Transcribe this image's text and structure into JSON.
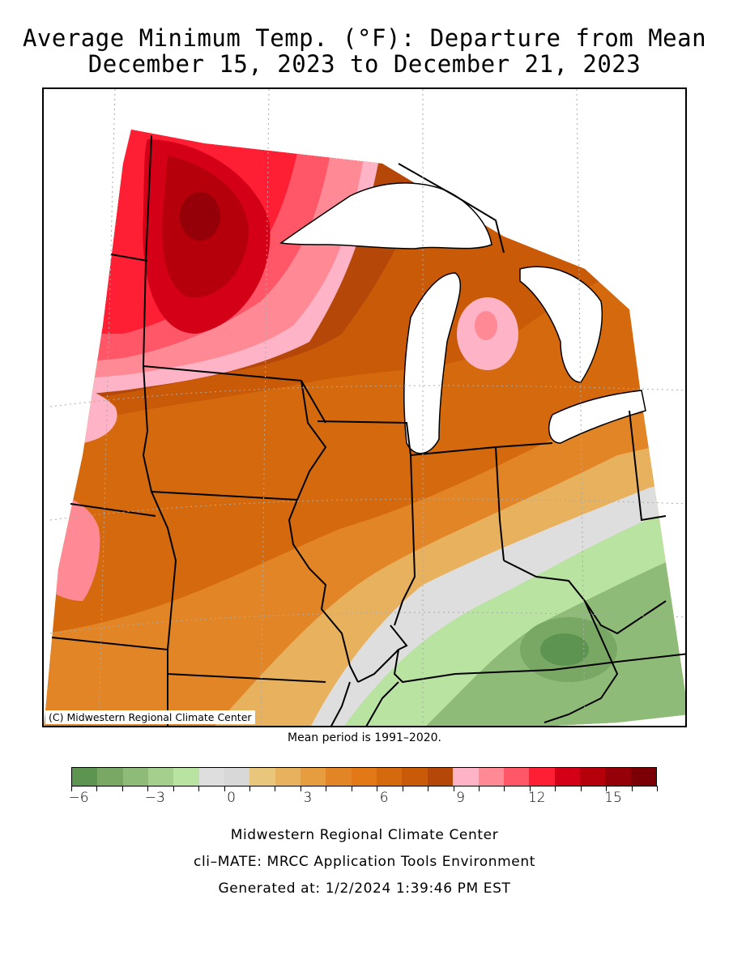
{
  "title": {
    "line1": "Average Minimum Temp. (°F): Departure from Mean",
    "line2": "December 15, 2023 to December 21, 2023"
  },
  "map": {
    "copyright": "(C) Midwestern Regional Climate Center",
    "mean_period": "Mean period is 1991–2020.",
    "colors": {
      "lake": "#ffffff",
      "outside": "#ffffff",
      "border": "#000000"
    }
  },
  "legend": {
    "colors": [
      "#5e9451",
      "#79a865",
      "#8fbb78",
      "#a4cf8c",
      "#b9e3a1",
      "#dedede",
      "#d8d8d8",
      "#e8c67c",
      "#e8b15e",
      "#e59d3f",
      "#e28527",
      "#e27916",
      "#d46a0d",
      "#c95a08",
      "#b54808",
      "#ffb3c6",
      "#ff8a96",
      "#ff5768",
      "#ff1f35",
      "#d40018",
      "#b5000c",
      "#950008",
      "#7a0005"
    ],
    "tick_labels": [
      "−6",
      "−3",
      "0",
      "3",
      "6",
      "9",
      "12",
      "15"
    ]
  },
  "footer": {
    "line1": "Midwestern Regional Climate Center",
    "line2": "cli–MATE: MRCC Application Tools Environment",
    "line3": "Generated at: 1/2/2024 1:39:46 PM EST"
  }
}
